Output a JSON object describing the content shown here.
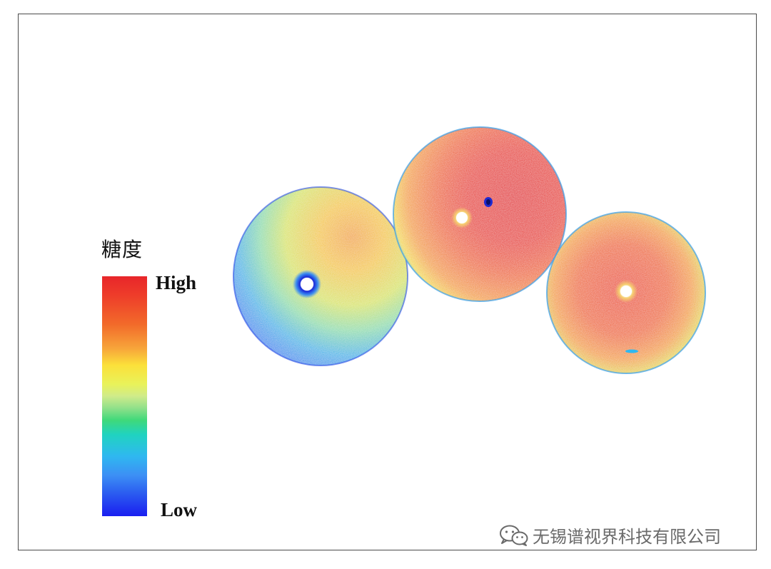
{
  "legend": {
    "title": "糖度",
    "high_label": "High",
    "low_label": "Low",
    "gradient_colors": [
      "#e8262a",
      "#f7a43a",
      "#fbe03a",
      "#8fe08a",
      "#20d3c0",
      "#3c8ff5",
      "#1a1ef0"
    ]
  },
  "watermark": {
    "icon": "wechat-icon",
    "text": "无锡谱视界科技有限公司"
  },
  "image": {
    "description_colors": {
      "fruit_left_dominant": "#f0c040",
      "fruit_left_edge": "#3aa0e8",
      "fruit_middle_dominant": "#e8382a",
      "fruit_right_dominant": "#ee5a2a"
    }
  }
}
